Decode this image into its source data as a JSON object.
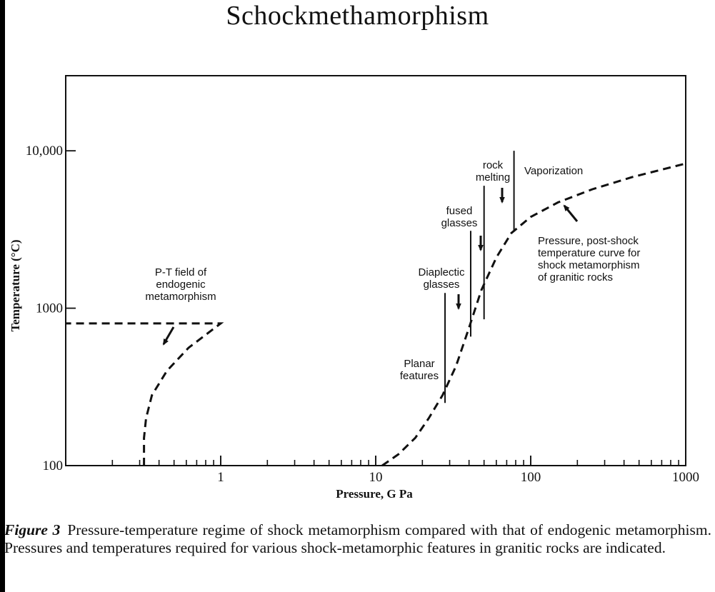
{
  "title": "Schockmethamorphism",
  "caption": {
    "label": "Figure 3",
    "text": "Pressure-temperature regime of shock metamorphism compared with that of endogenic metamorphism. Pressures and temperatures required for various shock-metamorphic features in granitic rocks are indicated."
  },
  "chart_data": {
    "type": "line",
    "title": "",
    "xlabel": "Pressure, G Pa",
    "ylabel": "Temperature (°C)",
    "xscale": "log",
    "yscale": "log",
    "xlim": [
      0.1,
      1000
    ],
    "ylim": [
      100,
      30000
    ],
    "x_ticks": [
      {
        "value": 1,
        "label": "1"
      },
      {
        "value": 10,
        "label": "10"
      },
      {
        "value": 100,
        "label": "100"
      },
      {
        "value": 1000,
        "label": "1000"
      }
    ],
    "y_ticks": [
      {
        "value": 100,
        "label": "100"
      },
      {
        "value": 1000,
        "label": "1000"
      },
      {
        "value": 10000,
        "label": "10,000"
      }
    ],
    "grid": false,
    "legend": "none",
    "series": [
      {
        "id": "endogenic",
        "style": "dashed",
        "points": [
          [
            0.32,
            100
          ],
          [
            0.32,
            150
          ],
          [
            0.33,
            200
          ],
          [
            0.36,
            280
          ],
          [
            0.45,
            400
          ],
          [
            0.62,
            560
          ],
          [
            1.0,
            800
          ],
          [
            0.1,
            800
          ]
        ]
      },
      {
        "id": "shock",
        "style": "dashed",
        "points": [
          [
            11,
            100
          ],
          [
            14,
            118
          ],
          [
            18,
            150
          ],
          [
            22,
            200
          ],
          [
            27,
            280
          ],
          [
            33,
            430
          ],
          [
            40,
            750
          ],
          [
            48,
            1300
          ],
          [
            60,
            2100
          ],
          [
            75,
            3000
          ],
          [
            100,
            3800
          ],
          [
            150,
            4700
          ],
          [
            250,
            5700
          ],
          [
            450,
            6800
          ],
          [
            1000,
            8300
          ]
        ]
      }
    ],
    "threshold_lines": [
      {
        "x": 28,
        "y_range": [
          250,
          1250
        ]
      },
      {
        "x": 41,
        "y_range": [
          660,
          3100
        ]
      },
      {
        "x": 50,
        "y_range": [
          850,
          6000
        ]
      },
      {
        "x": 78,
        "y_range": [
          3100,
          10000
        ]
      }
    ],
    "annotations": [
      {
        "id": "pt-field",
        "lines": [
          "P-T field of",
          "endogenic",
          "metamorphism"
        ]
      },
      {
        "id": "planar",
        "lines": [
          "Planar",
          "features"
        ]
      },
      {
        "id": "diaplectic",
        "lines": [
          "Diaplectic",
          "glasses"
        ]
      },
      {
        "id": "fused",
        "lines": [
          "fused",
          "glasses"
        ]
      },
      {
        "id": "rock-melting",
        "lines": [
          "rock",
          "melting"
        ]
      },
      {
        "id": "vaporization",
        "lines": [
          "Vaporization"
        ]
      },
      {
        "id": "curve-label",
        "lines": [
          "Pressure, post-shock",
          "temperature curve for",
          "shock metamorphism",
          "of granitic rocks"
        ]
      }
    ]
  }
}
